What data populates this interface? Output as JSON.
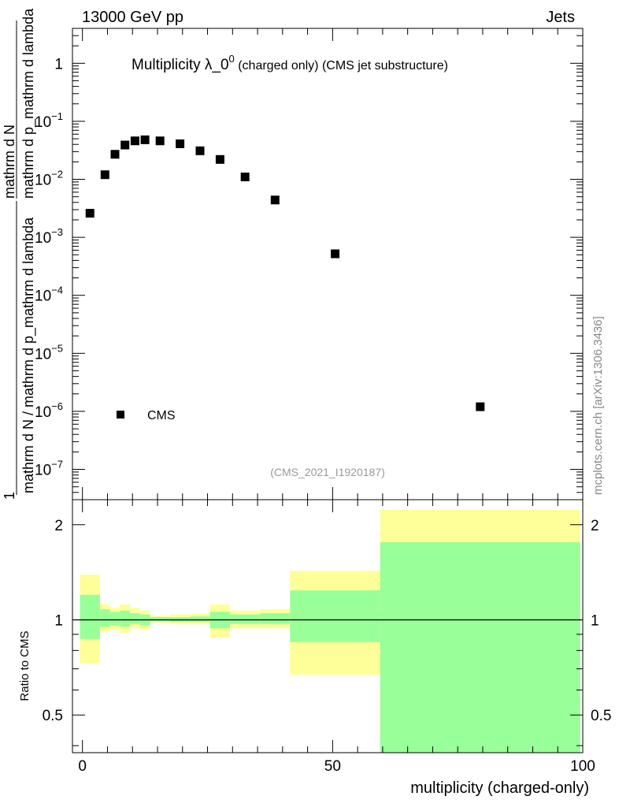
{
  "header": {
    "left": "13000 GeV pp",
    "right": "Jets"
  },
  "side_label": "mcplots.cern.ch [arXiv:1306.3436]",
  "chart_data": [
    {
      "type": "scatter",
      "title_main": "Multiplicity λ_0",
      "title_sup": "0",
      "title_rest": " (charged only) (CMS jet substructure)",
      "ylabel_top": "1",
      "ylabel_bottom": "mathrm d N / mathrm d p_mathrm d lambda",
      "ylabel2_top": "mathrm d N",
      "ylabel2_bottom": "mathrm d p_mathrm d lambda",
      "yscale": "log",
      "ylim": [
        3e-08,
        4
      ],
      "xlim": [
        -2,
        100
      ],
      "ytick_labels": [
        {
          "base": "10",
          "exp": "−7"
        },
        {
          "base": "10",
          "exp": "−6"
        },
        {
          "base": "10",
          "exp": "−5"
        },
        {
          "base": "10",
          "exp": "−4"
        },
        {
          "base": "10",
          "exp": "−3"
        },
        {
          "base": "10",
          "exp": "−2"
        },
        {
          "base": "10",
          "exp": "−1"
        },
        {
          "base": "1",
          "exp": ""
        }
      ],
      "legend": {
        "label": "CMS",
        "position": "bottom-left"
      },
      "watermark": "(CMS_2021_I1920187)",
      "series": [
        {
          "name": "CMS",
          "x": [
            1.5,
            4.5,
            6.5,
            8.5,
            10.5,
            12.5,
            15.5,
            19.5,
            23.5,
            27.5,
            32.5,
            38.5,
            50.5,
            79.5
          ],
          "y": [
            0.0026,
            0.012,
            0.027,
            0.039,
            0.046,
            0.048,
            0.046,
            0.041,
            0.031,
            0.022,
            0.011,
            0.0044,
            0.00052,
            1.2e-06
          ]
        }
      ]
    },
    {
      "type": "area",
      "ylabel": "Ratio to CMS",
      "xlabel": "multiplicity (charged-only)",
      "yscale": "log",
      "ylim": [
        0.38,
        2.4
      ],
      "xlim": [
        -2,
        100
      ],
      "ytick_labels": [
        "0.5",
        "1",
        "2"
      ],
      "xtick_labels": [
        "0",
        "50",
        "100"
      ],
      "reference_line": 1,
      "bins": [
        {
          "x0": -0.5,
          "x1": 3.5,
          "yellow": [
            0.73,
            1.39
          ],
          "green": [
            0.87,
            1.2
          ]
        },
        {
          "x0": 3.5,
          "x1": 5.5,
          "yellow": [
            0.92,
            1.12
          ],
          "green": [
            0.95,
            1.08
          ]
        },
        {
          "x0": 5.5,
          "x1": 7.5,
          "yellow": [
            0.93,
            1.09
          ],
          "green": [
            0.96,
            1.06
          ]
        },
        {
          "x0": 7.5,
          "x1": 9.5,
          "yellow": [
            0.91,
            1.12
          ],
          "green": [
            0.95,
            1.07
          ]
        },
        {
          "x0": 9.5,
          "x1": 11.5,
          "yellow": [
            0.94,
            1.09
          ],
          "green": [
            0.97,
            1.05
          ]
        },
        {
          "x0": 11.5,
          "x1": 13.5,
          "yellow": [
            0.93,
            1.07
          ],
          "green": [
            0.96,
            1.04
          ]
        },
        {
          "x0": 13.5,
          "x1": 17.5,
          "yellow": [
            0.98,
            1.03
          ],
          "green": [
            0.99,
            1.02
          ]
        },
        {
          "x0": 17.5,
          "x1": 21.5,
          "yellow": [
            0.97,
            1.04
          ],
          "green": [
            0.985,
            1.02
          ]
        },
        {
          "x0": 21.5,
          "x1": 25.5,
          "yellow": [
            0.97,
            1.045
          ],
          "green": [
            0.985,
            1.025
          ]
        },
        {
          "x0": 25.5,
          "x1": 29.5,
          "yellow": [
            0.88,
            1.12
          ],
          "green": [
            0.94,
            1.06
          ]
        },
        {
          "x0": 29.5,
          "x1": 35.5,
          "yellow": [
            0.94,
            1.07
          ],
          "green": [
            0.97,
            1.04
          ]
        },
        {
          "x0": 35.5,
          "x1": 41.5,
          "yellow": [
            0.94,
            1.08
          ],
          "green": [
            0.97,
            1.05
          ]
        },
        {
          "x0": 41.5,
          "x1": 59.5,
          "yellow": [
            0.67,
            1.43
          ],
          "green": [
            0.85,
            1.24
          ]
        },
        {
          "x0": 59.5,
          "x1": 99.5,
          "yellow": [
            0.38,
            2.23
          ],
          "green": [
            0.38,
            1.76
          ]
        }
      ],
      "colors": {
        "yellow": "#ffff99",
        "green": "#99ff99"
      }
    }
  ]
}
